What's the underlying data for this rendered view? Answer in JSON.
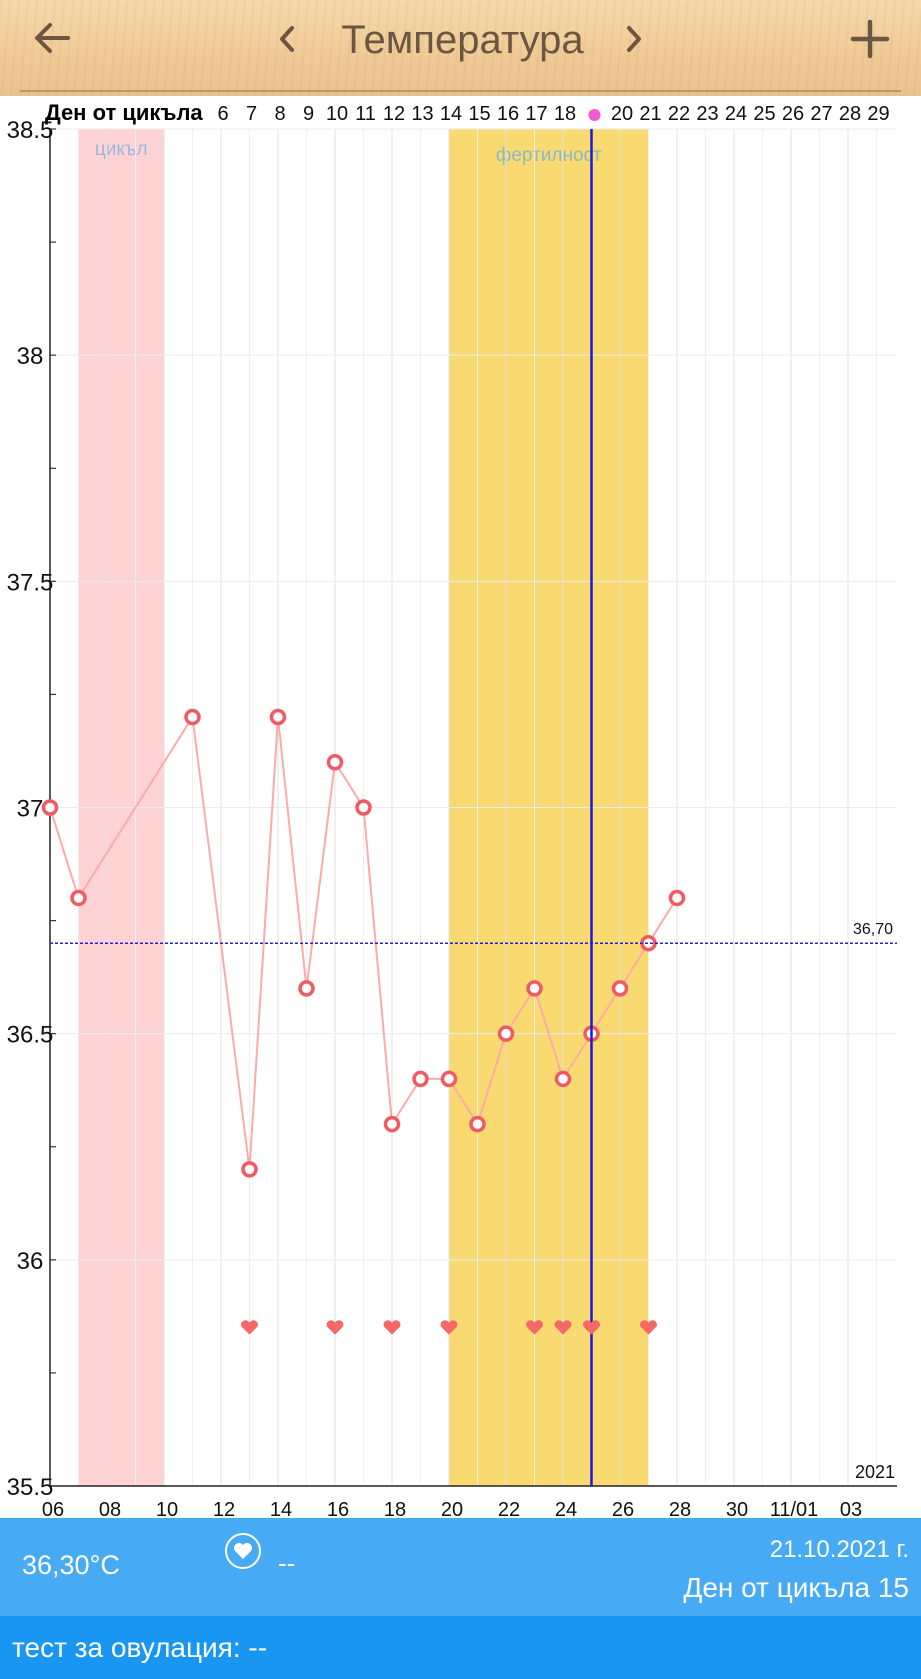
{
  "header": {
    "title": "Температура",
    "back_icon": "arrow-left-icon",
    "prev_icon": "chevron-left-icon",
    "next_icon": "chevron-right-icon",
    "add_icon": "plus-icon"
  },
  "colors": {
    "period": "#ffd3d3",
    "fertile": "#f8da70",
    "line": "#fcaaaa",
    "point": "#f25a63",
    "heart": "#f46868",
    "today": "#1a1ad6",
    "coverline": "#2222dd",
    "info_bar": "#47aaf5",
    "ov_bar": "#1896f2"
  },
  "chart_data": {
    "type": "line",
    "ylabel": "",
    "ylim": [
      35.5,
      38.5
    ],
    "y_ticks": [
      "38.5",
      "38",
      "37.5",
      "37",
      "36.5",
      "36",
      "35.5"
    ],
    "x_tick_labels": [
      "06",
      "08",
      "10",
      "12",
      "14",
      "16",
      "18",
      "20",
      "22",
      "24",
      "26",
      "28",
      "30",
      "11/01",
      "03"
    ],
    "cycle_row_label": "Ден от цикъла",
    "cycle_days": [
      "6",
      "7",
      "8",
      "9",
      "10",
      "11",
      "12",
      "13",
      "14",
      "15",
      "16",
      "17",
      "18",
      "",
      "20",
      "21",
      "22",
      "23",
      "24",
      "25",
      "26",
      "27",
      "28",
      "29"
    ],
    "year_label": "2021",
    "series": [
      {
        "x": [
          "10/06",
          "10/07",
          "10/11",
          "10/13",
          "10/14",
          "10/15",
          "10/16",
          "10/17",
          "10/18",
          "10/19",
          "10/20",
          "10/21",
          "10/22",
          "10/23",
          "10/24",
          "10/25",
          "10/26",
          "10/27",
          "10/28"
        ],
        "values": [
          37.0,
          36.8,
          37.2,
          36.2,
          37.2,
          36.6,
          37.1,
          37.0,
          36.3,
          36.4,
          36.4,
          36.3,
          36.5,
          36.6,
          36.4,
          36.5,
          36.6,
          36.7,
          36.8
        ]
      }
    ],
    "coverline": {
      "value": 36.7,
      "label": "36,70"
    },
    "period_band": {
      "label": "цикъл",
      "from": "10/07",
      "to": "10/10"
    },
    "fertile_band": {
      "label": "фертилност",
      "from": "10/20",
      "to": "10/27"
    },
    "today": "10/25",
    "intercourse_days": [
      "10/13",
      "10/16",
      "10/18",
      "10/20",
      "10/23",
      "10/24",
      "10/25",
      "10/27"
    ],
    "grid": true
  },
  "info": {
    "current_temp": "36,30°C",
    "heart_value": "--",
    "date": "21.10.2021 г.",
    "cycle_day_label": "Ден от цикъла 15"
  },
  "ovulation": {
    "text": "тест за овулация: --"
  }
}
